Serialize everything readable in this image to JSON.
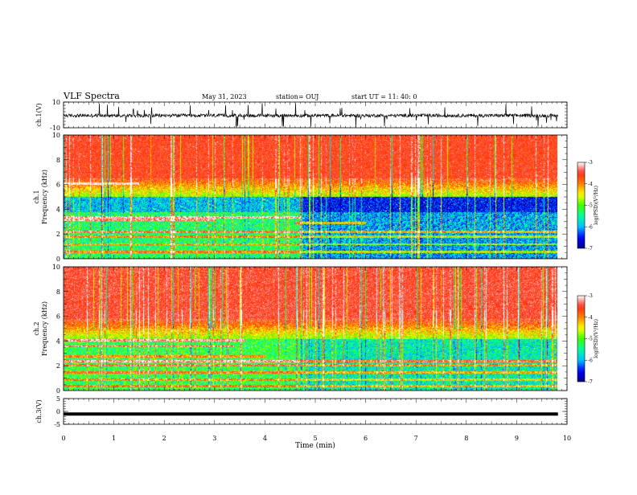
{
  "header": {
    "title": "VLF Spectra",
    "date": "May 31, 2023",
    "station": "station= OUJ",
    "start": "start  UT  =   11: 40: 0"
  },
  "chart_data": [
    {
      "type": "line",
      "id": "ch1-waveform",
      "ylabel": "ch.1(V)",
      "ylim": [
        -10,
        10
      ],
      "yticks": [
        {
          "v": 10,
          "label": "10"
        },
        {
          "v": -10,
          "label": "-10"
        }
      ],
      "xlim": [
        0,
        10
      ],
      "note": "dense noise waveform around 0 V with occasional spikes"
    },
    {
      "type": "heatmap",
      "id": "ch1-spectrogram",
      "ylabel": "ch.1\nFrequency (kHz)",
      "xlim": [
        0,
        10
      ],
      "ylim": [
        0,
        10
      ],
      "yticks": [
        "0",
        "2",
        "4",
        "6",
        "8",
        "10"
      ],
      "data_extent_x": [
        0,
        9.82
      ],
      "colorbar": {
        "range": [
          -7,
          -3
        ],
        "ticks": [
          "-3",
          "-4",
          "-5",
          "-6",
          "-7"
        ],
        "label": "log(PSD)(V²/Hz)"
      }
    },
    {
      "type": "heatmap",
      "id": "ch2-spectrogram",
      "ylabel": "ch.2\nFrequency (kHz)",
      "xlim": [
        0,
        10
      ],
      "ylim": [
        0,
        10
      ],
      "yticks": [
        "0",
        "2",
        "4",
        "6",
        "8",
        "10"
      ],
      "data_extent_x": [
        0,
        9.82
      ],
      "colorbar": {
        "range": [
          -7,
          -3
        ],
        "ticks": [
          "-3",
          "-4",
          "-5",
          "-6",
          "-7"
        ],
        "label": "log(PSD)(V²/Hz)"
      }
    },
    {
      "type": "line",
      "id": "ch3-waveform",
      "ylabel": "ch.3(V)",
      "ylim": [
        -5,
        5
      ],
      "yticks": [
        {
          "v": 5,
          "label": "5"
        },
        {
          "v": 0,
          "label": "0"
        },
        {
          "v": -5,
          "label": "-5"
        }
      ],
      "xlim": [
        0,
        10
      ],
      "note": "flat thick line near -1 V"
    }
  ],
  "xaxis": {
    "label": "Time  (min)",
    "ticks": [
      "0",
      "1",
      "2",
      "3",
      "4",
      "5",
      "6",
      "7",
      "8",
      "9",
      "10"
    ]
  },
  "colors": {
    "colormap": [
      "#00008b",
      "#0000ff",
      "#00bfff",
      "#00ffa0",
      "#40ff00",
      "#ffff00",
      "#ff8000",
      "#ff2a1a",
      "#ffffff"
    ]
  }
}
